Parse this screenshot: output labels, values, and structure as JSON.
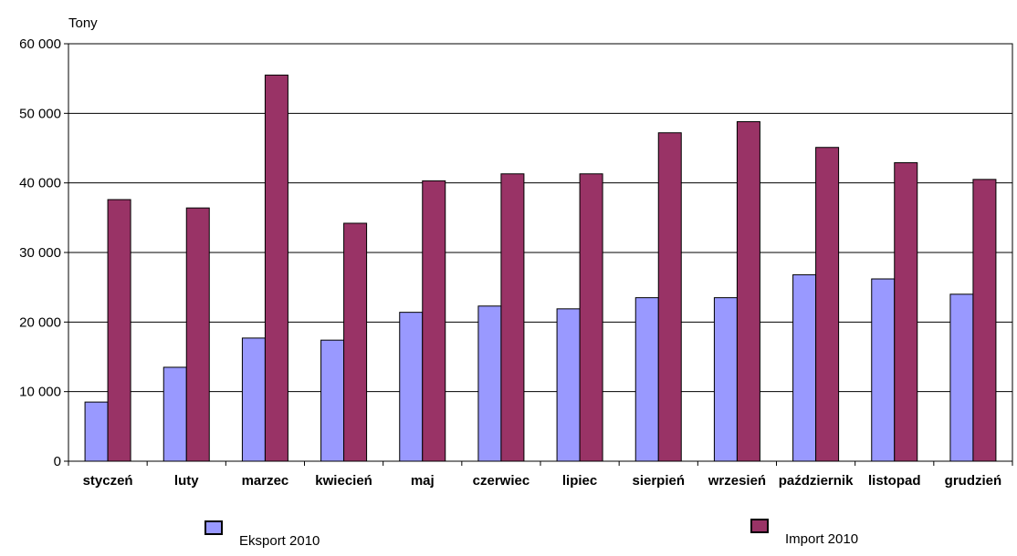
{
  "chart_data": {
    "type": "bar",
    "ylabel": "Tony",
    "ylim": [
      0,
      60000
    ],
    "yticks": [
      0,
      10000,
      20000,
      30000,
      40000,
      50000,
      60000
    ],
    "ytick_labels": [
      "0",
      "10 000",
      "20 000",
      "30 000",
      "40 000",
      "50 000",
      "60 000"
    ],
    "categories": [
      "styczeń",
      "luty",
      "marzec",
      "kwiecień",
      "maj",
      "czerwiec",
      "lipiec",
      "sierpień",
      "wrzesień",
      "październik",
      "listopad",
      "grudzień"
    ],
    "series": [
      {
        "name": "Eksport 2010",
        "color": "#9999ff",
        "values": [
          8500,
          13500,
          17700,
          17400,
          21400,
          22300,
          21900,
          23500,
          23500,
          26800,
          26200,
          24000
        ]
      },
      {
        "name": "Import 2010",
        "color": "#993366",
        "values": [
          37600,
          36400,
          55500,
          34200,
          40300,
          41300,
          41300,
          47200,
          48800,
          45100,
          42900,
          40500
        ]
      }
    ],
    "grid": true,
    "legend_position": "bottom"
  }
}
